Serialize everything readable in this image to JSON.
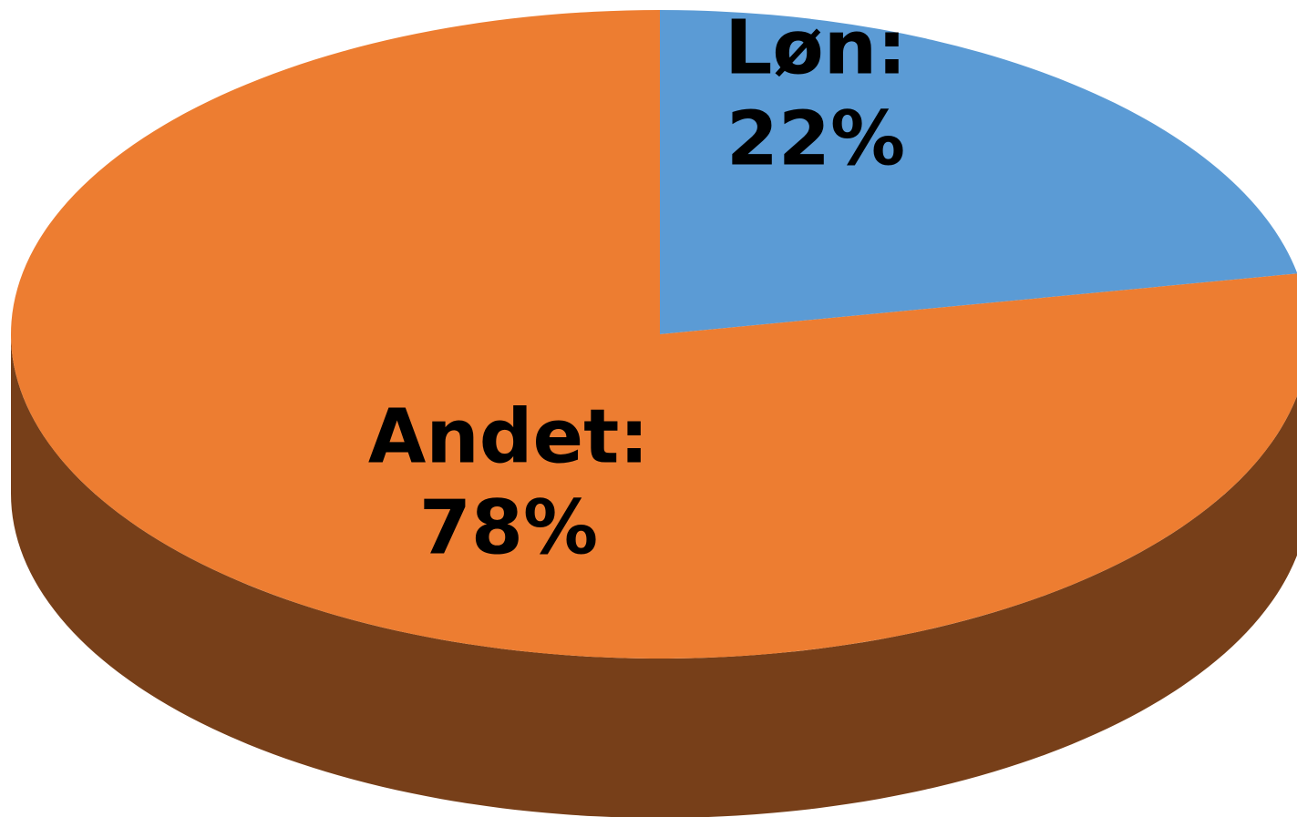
{
  "chart_data": {
    "type": "pie",
    "categories": [
      "Løn:",
      "Andet:"
    ],
    "values": [
      22,
      78
    ],
    "value_labels": [
      "22%",
      "78%"
    ],
    "colors": [
      "#5b9bd5",
      "#ed7d31"
    ]
  }
}
